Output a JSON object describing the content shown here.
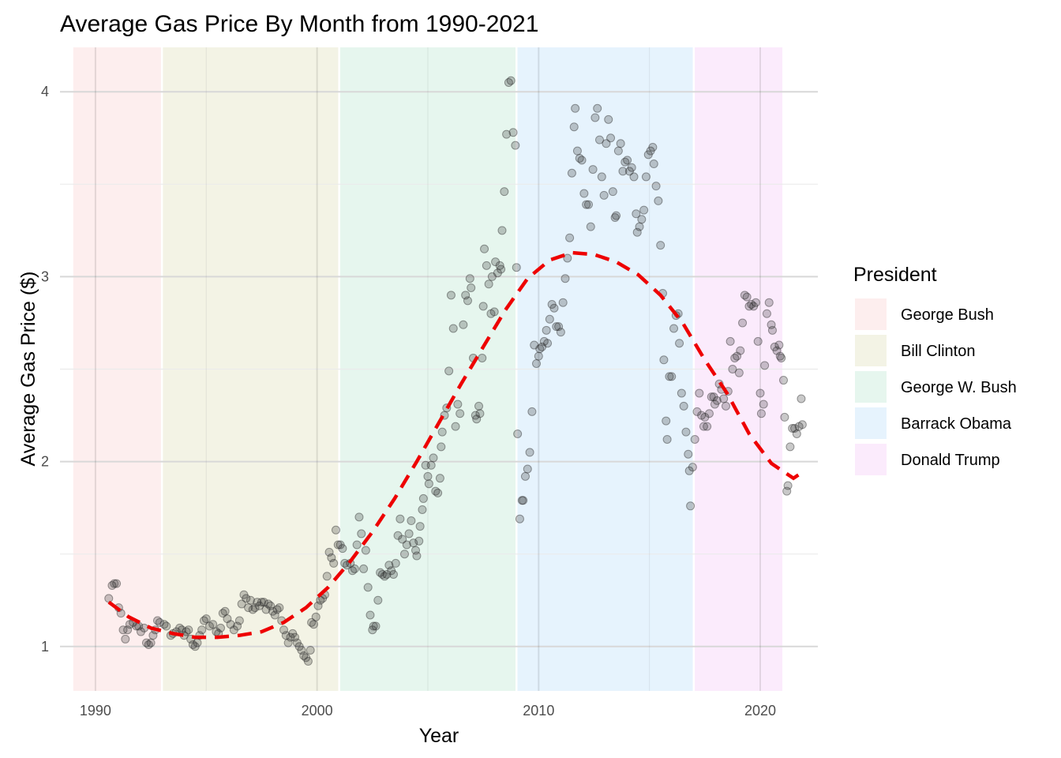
{
  "chart_data": {
    "type": "scatter",
    "title": "Average Gas Price By Month from 1990-2021",
    "xlabel": "Year",
    "ylabel": "Average Gas Price ($)",
    "xlim": [
      1988.4,
      2022.6
    ],
    "ylim": [
      0.76,
      4.24
    ],
    "x_ticks": [
      1990,
      2000,
      2010,
      2020
    ],
    "y_ticks": [
      1,
      2,
      3,
      4
    ],
    "grid": true,
    "legend": {
      "title": "President",
      "position": "right",
      "entries": [
        {
          "label": "George Bush",
          "color": "#fdeeee",
          "start": 1989,
          "end": 1993
        },
        {
          "label": "Bill Clinton",
          "color": "#f3f3e5",
          "start": 1993,
          "end": 2001
        },
        {
          "label": "George W. Bush",
          "color": "#e6f6ee",
          "start": 2001,
          "end": 2009
        },
        {
          "label": "Barrack Obama",
          "color": "#e6f3fd",
          "start": 2009,
          "end": 2017
        },
        {
          "label": "Donald Trump",
          "color": "#fbebfc",
          "start": 2017,
          "end": 2021
        }
      ]
    },
    "points": [
      [
        1990.6,
        1.26
      ],
      [
        1990.75,
        1.33
      ],
      [
        1990.85,
        1.34
      ],
      [
        1990.95,
        1.34
      ],
      [
        1991.05,
        1.21
      ],
      [
        1991.15,
        1.18
      ],
      [
        1991.25,
        1.09
      ],
      [
        1991.35,
        1.04
      ],
      [
        1991.45,
        1.09
      ],
      [
        1991.55,
        1.12
      ],
      [
        1991.7,
        1.13
      ],
      [
        1991.85,
        1.11
      ],
      [
        1991.95,
        1.11
      ],
      [
        1992.05,
        1.08
      ],
      [
        1992.2,
        1.1
      ],
      [
        1992.3,
        1.02
      ],
      [
        1992.4,
        1.01
      ],
      [
        1992.5,
        1.02
      ],
      [
        1992.6,
        1.06
      ],
      [
        1992.7,
        1.09
      ],
      [
        1992.8,
        1.14
      ],
      [
        1992.9,
        1.13
      ],
      [
        1993.1,
        1.12
      ],
      [
        1993.2,
        1.11
      ],
      [
        1993.4,
        1.06
      ],
      [
        1993.5,
        1.07
      ],
      [
        1993.65,
        1.08
      ],
      [
        1993.8,
        1.1
      ],
      [
        1993.9,
        1.09
      ],
      [
        1994.0,
        1.06
      ],
      [
        1994.1,
        1.08
      ],
      [
        1994.2,
        1.09
      ],
      [
        1994.3,
        1.04
      ],
      [
        1994.4,
        1.01
      ],
      [
        1994.5,
        1.0
      ],
      [
        1994.6,
        1.02
      ],
      [
        1994.7,
        1.06
      ],
      [
        1994.8,
        1.09
      ],
      [
        1994.9,
        1.14
      ],
      [
        1995.0,
        1.15
      ],
      [
        1995.15,
        1.11
      ],
      [
        1995.3,
        1.12
      ],
      [
        1995.45,
        1.08
      ],
      [
        1995.55,
        1.07
      ],
      [
        1995.65,
        1.1
      ],
      [
        1995.75,
        1.18
      ],
      [
        1995.85,
        1.19
      ],
      [
        1995.95,
        1.15
      ],
      [
        1996.1,
        1.12
      ],
      [
        1996.25,
        1.09
      ],
      [
        1996.4,
        1.11
      ],
      [
        1996.5,
        1.14
      ],
      [
        1996.6,
        1.23
      ],
      [
        1996.7,
        1.28
      ],
      [
        1996.8,
        1.26
      ],
      [
        1996.9,
        1.21
      ],
      [
        1997.0,
        1.25
      ],
      [
        1997.1,
        1.2
      ],
      [
        1997.2,
        1.21
      ],
      [
        1997.3,
        1.24
      ],
      [
        1997.4,
        1.22
      ],
      [
        1997.5,
        1.24
      ],
      [
        1997.6,
        1.24
      ],
      [
        1997.7,
        1.2
      ],
      [
        1997.8,
        1.23
      ],
      [
        1997.9,
        1.22
      ],
      [
        1998.0,
        1.19
      ],
      [
        1998.1,
        1.17
      ],
      [
        1998.2,
        1.2
      ],
      [
        1998.3,
        1.21
      ],
      [
        1998.4,
        1.14
      ],
      [
        1998.5,
        1.09
      ],
      [
        1998.6,
        1.06
      ],
      [
        1998.7,
        1.02
      ],
      [
        1998.8,
        1.05
      ],
      [
        1998.9,
        1.07
      ],
      [
        1999.0,
        1.05
      ],
      [
        1999.1,
        1.02
      ],
      [
        1999.2,
        1.0
      ],
      [
        1999.3,
        0.98
      ],
      [
        1999.4,
        0.95
      ],
      [
        1999.5,
        0.94
      ],
      [
        1999.6,
        0.92
      ],
      [
        1999.7,
        0.98
      ],
      [
        1999.75,
        1.13
      ],
      [
        1999.85,
        1.12
      ],
      [
        1999.95,
        1.16
      ],
      [
        2000.05,
        1.22
      ],
      [
        2000.15,
        1.25
      ],
      [
        2000.25,
        1.26
      ],
      [
        2000.35,
        1.28
      ],
      [
        2000.45,
        1.38
      ],
      [
        2000.55,
        1.51
      ],
      [
        2000.65,
        1.48
      ],
      [
        2000.75,
        1.45
      ],
      [
        2000.85,
        1.63
      ],
      [
        2000.95,
        1.55
      ],
      [
        2001.05,
        1.55
      ],
      [
        2001.15,
        1.53
      ],
      [
        2001.25,
        1.45
      ],
      [
        2001.35,
        1.44
      ],
      [
        2001.5,
        1.45
      ],
      [
        2001.6,
        1.41
      ],
      [
        2001.7,
        1.42
      ],
      [
        2001.8,
        1.55
      ],
      [
        2001.9,
        1.7
      ],
      [
        2002.0,
        1.61
      ],
      [
        2002.1,
        1.42
      ],
      [
        2002.2,
        1.52
      ],
      [
        2002.3,
        1.32
      ],
      [
        2002.4,
        1.17
      ],
      [
        2002.5,
        1.09
      ],
      [
        2002.55,
        1.11
      ],
      [
        2002.65,
        1.11
      ],
      [
        2002.75,
        1.25
      ],
      [
        2002.85,
        1.4
      ],
      [
        2002.95,
        1.39
      ],
      [
        2003.05,
        1.38
      ],
      [
        2003.15,
        1.39
      ],
      [
        2003.25,
        1.44
      ],
      [
        2003.35,
        1.41
      ],
      [
        2003.45,
        1.39
      ],
      [
        2003.55,
        1.45
      ],
      [
        2003.65,
        1.6
      ],
      [
        2003.75,
        1.69
      ],
      [
        2003.85,
        1.58
      ],
      [
        2003.95,
        1.5
      ],
      [
        2004.05,
        1.55
      ],
      [
        2004.15,
        1.61
      ],
      [
        2004.25,
        1.68
      ],
      [
        2004.35,
        1.56
      ],
      [
        2004.45,
        1.52
      ],
      [
        2004.5,
        1.49
      ],
      [
        2004.6,
        1.57
      ],
      [
        2004.65,
        1.65
      ],
      [
        2004.75,
        1.74
      ],
      [
        2004.8,
        1.8
      ],
      [
        2004.9,
        1.98
      ],
      [
        2005.0,
        1.92
      ],
      [
        2005.05,
        1.88
      ],
      [
        2005.15,
        1.98
      ],
      [
        2005.25,
        2.02
      ],
      [
        2005.35,
        1.84
      ],
      [
        2005.45,
        1.83
      ],
      [
        2005.55,
        1.91
      ],
      [
        2005.6,
        2.08
      ],
      [
        2005.65,
        2.16
      ],
      [
        2005.75,
        2.25
      ],
      [
        2005.85,
        2.29
      ],
      [
        2005.95,
        2.49
      ],
      [
        2006.05,
        2.9
      ],
      [
        2006.15,
        2.72
      ],
      [
        2006.25,
        2.19
      ],
      [
        2006.35,
        2.31
      ],
      [
        2006.45,
        2.26
      ],
      [
        2006.6,
        2.74
      ],
      [
        2006.7,
        2.9
      ],
      [
        2006.8,
        2.87
      ],
      [
        2006.9,
        2.99
      ],
      [
        2006.95,
        2.94
      ],
      [
        2007.05,
        2.56
      ],
      [
        2007.15,
        2.25
      ],
      [
        2007.2,
        2.23
      ],
      [
        2007.3,
        2.3
      ],
      [
        2007.35,
        2.26
      ],
      [
        2007.45,
        2.56
      ],
      [
        2007.5,
        2.84
      ],
      [
        2007.55,
        3.15
      ],
      [
        2007.65,
        3.06
      ],
      [
        2007.75,
        2.96
      ],
      [
        2007.85,
        2.8
      ],
      [
        2007.9,
        3.0
      ],
      [
        2008.0,
        2.81
      ],
      [
        2008.05,
        3.08
      ],
      [
        2008.15,
        3.02
      ],
      [
        2008.25,
        3.06
      ],
      [
        2008.3,
        3.04
      ],
      [
        2008.35,
        3.25
      ],
      [
        2008.45,
        3.46
      ],
      [
        2008.55,
        3.77
      ],
      [
        2008.65,
        4.05
      ],
      [
        2008.75,
        4.06
      ],
      [
        2008.85,
        3.78
      ],
      [
        2008.95,
        3.71
      ],
      [
        2009.0,
        3.05
      ],
      [
        2009.05,
        2.15
      ],
      [
        2009.15,
        1.69
      ],
      [
        2009.25,
        1.79
      ],
      [
        2009.3,
        1.79
      ],
      [
        2009.4,
        1.92
      ],
      [
        2009.5,
        1.96
      ],
      [
        2009.6,
        2.05
      ],
      [
        2009.7,
        2.27
      ],
      [
        2009.8,
        2.63
      ],
      [
        2009.9,
        2.53
      ],
      [
        2010.0,
        2.57
      ],
      [
        2010.05,
        2.61
      ],
      [
        2010.15,
        2.62
      ],
      [
        2010.25,
        2.65
      ],
      [
        2010.35,
        2.71
      ],
      [
        2010.4,
        2.64
      ],
      [
        2010.5,
        2.77
      ],
      [
        2010.6,
        2.85
      ],
      [
        2010.7,
        2.83
      ],
      [
        2010.8,
        2.73
      ],
      [
        2010.9,
        2.73
      ],
      [
        2011.0,
        2.7
      ],
      [
        2011.1,
        2.86
      ],
      [
        2011.2,
        2.99
      ],
      [
        2011.3,
        3.1
      ],
      [
        2011.4,
        3.21
      ],
      [
        2011.5,
        3.56
      ],
      [
        2011.6,
        3.81
      ],
      [
        2011.65,
        3.91
      ],
      [
        2011.75,
        3.68
      ],
      [
        2011.85,
        3.64
      ],
      [
        2011.95,
        3.63
      ],
      [
        2012.05,
        3.45
      ],
      [
        2012.15,
        3.39
      ],
      [
        2012.25,
        3.39
      ],
      [
        2012.35,
        3.27
      ],
      [
        2012.45,
        3.58
      ],
      [
        2012.55,
        3.86
      ],
      [
        2012.65,
        3.91
      ],
      [
        2012.75,
        3.74
      ],
      [
        2012.85,
        3.54
      ],
      [
        2012.95,
        3.44
      ],
      [
        2013.05,
        3.72
      ],
      [
        2013.15,
        3.85
      ],
      [
        2013.25,
        3.75
      ],
      [
        2013.35,
        3.46
      ],
      [
        2013.45,
        3.32
      ],
      [
        2013.5,
        3.33
      ],
      [
        2013.6,
        3.68
      ],
      [
        2013.7,
        3.72
      ],
      [
        2013.8,
        3.57
      ],
      [
        2013.9,
        3.62
      ],
      [
        2014.0,
        3.63
      ],
      [
        2014.1,
        3.57
      ],
      [
        2014.2,
        3.59
      ],
      [
        2014.3,
        3.54
      ],
      [
        2014.4,
        3.34
      ],
      [
        2014.45,
        3.24
      ],
      [
        2014.55,
        3.27
      ],
      [
        2014.65,
        3.31
      ],
      [
        2014.75,
        3.36
      ],
      [
        2014.85,
        3.54
      ],
      [
        2014.95,
        3.66
      ],
      [
        2015.05,
        3.68
      ],
      [
        2015.15,
        3.7
      ],
      [
        2015.2,
        3.61
      ],
      [
        2015.3,
        3.49
      ],
      [
        2015.4,
        3.41
      ],
      [
        2015.5,
        3.17
      ],
      [
        2015.6,
        2.91
      ],
      [
        2015.65,
        2.55
      ],
      [
        2015.75,
        2.22
      ],
      [
        2015.8,
        2.12
      ],
      [
        2015.9,
        2.46
      ],
      [
        2016.0,
        2.46
      ],
      [
        2016.1,
        2.72
      ],
      [
        2016.2,
        2.79
      ],
      [
        2016.3,
        2.8
      ],
      [
        2016.35,
        2.64
      ],
      [
        2016.45,
        2.37
      ],
      [
        2016.55,
        2.3
      ],
      [
        2016.65,
        2.16
      ],
      [
        2016.75,
        2.04
      ],
      [
        2016.8,
        1.95
      ],
      [
        2016.85,
        1.76
      ],
      [
        2016.95,
        1.97
      ],
      [
        2017.05,
        2.12
      ],
      [
        2017.15,
        2.27
      ],
      [
        2017.25,
        2.37
      ],
      [
        2017.35,
        2.25
      ],
      [
        2017.45,
        2.19
      ],
      [
        2017.5,
        2.24
      ],
      [
        2017.6,
        2.19
      ],
      [
        2017.7,
        2.26
      ],
      [
        2017.8,
        2.35
      ],
      [
        2017.9,
        2.35
      ],
      [
        2017.95,
        2.31
      ],
      [
        2018.05,
        2.33
      ],
      [
        2018.15,
        2.42
      ],
      [
        2018.25,
        2.39
      ],
      [
        2018.35,
        2.34
      ],
      [
        2018.45,
        2.3
      ],
      [
        2018.55,
        2.38
      ],
      [
        2018.65,
        2.65
      ],
      [
        2018.75,
        2.5
      ],
      [
        2018.85,
        2.56
      ],
      [
        2018.95,
        2.57
      ],
      [
        2019.05,
        2.48
      ],
      [
        2019.1,
        2.6
      ],
      [
        2019.2,
        2.75
      ],
      [
        2019.3,
        2.9
      ],
      [
        2019.4,
        2.89
      ],
      [
        2019.5,
        2.84
      ],
      [
        2019.6,
        2.85
      ],
      [
        2019.7,
        2.84
      ],
      [
        2019.8,
        2.86
      ],
      [
        2019.9,
        2.65
      ],
      [
        2020.0,
        2.37
      ],
      [
        2020.05,
        2.26
      ],
      [
        2020.15,
        2.31
      ],
      [
        2020.2,
        2.52
      ],
      [
        2020.3,
        2.8
      ],
      [
        2020.4,
        2.86
      ],
      [
        2020.5,
        2.74
      ],
      [
        2020.55,
        2.71
      ],
      [
        2020.65,
        2.62
      ],
      [
        2020.75,
        2.6
      ],
      [
        2020.85,
        2.63
      ],
      [
        2020.9,
        2.57
      ],
      [
        2020.95,
        2.56
      ],
      [
        2021.05,
        2.44
      ],
      [
        2021.1,
        2.24
      ],
      [
        2021.2,
        1.84
      ],
      [
        2021.25,
        1.87
      ],
      [
        2021.35,
        2.08
      ],
      [
        2021.45,
        2.18
      ],
      [
        2021.55,
        2.18
      ],
      [
        2021.65,
        2.15
      ],
      [
        2021.75,
        2.19
      ],
      [
        2021.85,
        2.34
      ],
      [
        2021.9,
        2.2
      ]
    ],
    "trend_line": {
      "style": "dashed",
      "color": "#ee0000",
      "points": [
        [
          1990.6,
          1.24
        ],
        [
          1991.5,
          1.16
        ],
        [
          1992.5,
          1.1
        ],
        [
          1993.5,
          1.07
        ],
        [
          1994.5,
          1.05
        ],
        [
          1995.5,
          1.05
        ],
        [
          1996.5,
          1.06
        ],
        [
          1997.5,
          1.08
        ],
        [
          1998.5,
          1.13
        ],
        [
          1999.5,
          1.21
        ],
        [
          2000.5,
          1.32
        ],
        [
          2001.5,
          1.46
        ],
        [
          2002.5,
          1.62
        ],
        [
          2003.5,
          1.8
        ],
        [
          2004.5,
          2.0
        ],
        [
          2005.5,
          2.21
        ],
        [
          2006.5,
          2.42
        ],
        [
          2007.5,
          2.62
        ],
        [
          2008.5,
          2.82
        ],
        [
          2009.5,
          2.99
        ],
        [
          2010.5,
          3.09
        ],
        [
          2011.5,
          3.13
        ],
        [
          2012.5,
          3.12
        ],
        [
          2013.5,
          3.08
        ],
        [
          2014.5,
          3.01
        ],
        [
          2015.5,
          2.9
        ],
        [
          2016.5,
          2.75
        ],
        [
          2017.5,
          2.55
        ],
        [
          2018.5,
          2.37
        ],
        [
          2019.5,
          2.15
        ],
        [
          2020.5,
          1.99
        ],
        [
          2021.5,
          1.91
        ],
        [
          2022.0,
          1.95
        ]
      ]
    }
  }
}
